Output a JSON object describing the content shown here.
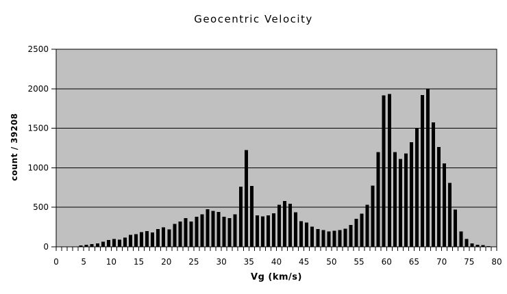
{
  "title": "Geocentric Velocity",
  "colors": {
    "background": "#ffffff",
    "plot_background": "#c0c0c0",
    "bar": "#000000",
    "gridline": "#000000",
    "axis": "#000000",
    "text": "#000000"
  },
  "y_axis": {
    "label": "count / 39208",
    "min": 0,
    "max": 2500,
    "step": 500,
    "tick_labels": [
      "0",
      "500",
      "1000",
      "1500",
      "2000",
      "2500"
    ]
  },
  "x_axis": {
    "label": "Vg (km/s)",
    "min": 0,
    "max": 80,
    "label_step": 5,
    "minor_tick_step": 1,
    "tick_labels": [
      "0",
      "5",
      "10",
      "15",
      "20",
      "25",
      "30",
      "35",
      "40",
      "45",
      "50",
      "55",
      "60",
      "65",
      "70",
      "75",
      "80"
    ]
  },
  "chart_data": {
    "type": "bar",
    "subtype": "histogram",
    "title": "Geocentric Velocity",
    "xlabel": "Vg (km/s)",
    "ylabel": "count / 39208",
    "xlim": [
      0,
      80
    ],
    "ylim": [
      0,
      2500
    ],
    "grid": "horizontal",
    "legend": "none",
    "bin_width": 1,
    "x": [
      0,
      1,
      2,
      3,
      4,
      5,
      6,
      7,
      8,
      9,
      10,
      11,
      12,
      13,
      14,
      15,
      16,
      17,
      18,
      19,
      20,
      21,
      22,
      23,
      24,
      25,
      26,
      27,
      28,
      29,
      30,
      31,
      32,
      33,
      34,
      35,
      36,
      37,
      38,
      39,
      40,
      41,
      42,
      43,
      44,
      45,
      46,
      47,
      48,
      49,
      50,
      51,
      52,
      53,
      54,
      55,
      56,
      57,
      58,
      59,
      60,
      61,
      62,
      63,
      64,
      65,
      66,
      67,
      68,
      69,
      70,
      71,
      72,
      73,
      74,
      75,
      76,
      77,
      78,
      79
    ],
    "values": [
      0,
      0,
      0,
      5,
      18,
      25,
      35,
      45,
      65,
      85,
      100,
      90,
      115,
      150,
      160,
      185,
      200,
      180,
      225,
      245,
      220,
      290,
      320,
      365,
      320,
      380,
      410,
      475,
      455,
      440,
      380,
      365,
      410,
      760,
      1225,
      770,
      400,
      385,
      400,
      425,
      530,
      580,
      545,
      435,
      325,
      305,
      255,
      225,
      210,
      195,
      205,
      210,
      230,
      275,
      355,
      420,
      530,
      775,
      1200,
      1915,
      1935,
      1200,
      1110,
      1180,
      1325,
      1500,
      1920,
      2000,
      1575,
      1265,
      1055,
      810,
      470,
      195,
      100,
      45,
      25,
      20,
      10,
      0
    ]
  }
}
